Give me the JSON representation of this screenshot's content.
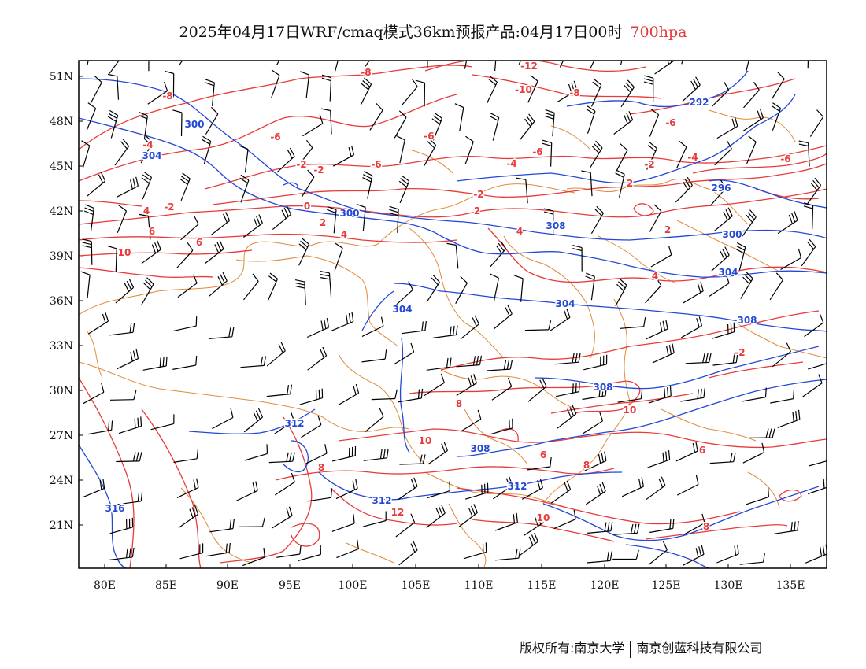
{
  "title": {
    "text": "2025年04月17日WRF/cmaq模式36km预报产品:04月17日00时",
    "level": "700hpa"
  },
  "axes": {
    "lat_labels": [
      "51N",
      "48N",
      "45N",
      "42N",
      "39N",
      "36N",
      "33N",
      "30N",
      "27N",
      "24N",
      "21N"
    ],
    "lon_labels": [
      "80E",
      "85E",
      "90E",
      "95E",
      "100E",
      "105E",
      "110E",
      "115E",
      "120E",
      "125E",
      "130E",
      "135E"
    ]
  },
  "colors": {
    "temperature": "#e83a3a",
    "height": "#2347d6",
    "border": "#e08a3a",
    "wind": "#000000"
  },
  "temperature_labels": [
    "-12",
    "-10",
    "-8",
    "-8",
    "-8",
    "-6",
    "-6",
    "-6",
    "-6",
    "-6",
    "-6",
    "-4",
    "-4",
    "-4",
    "-2",
    "-2",
    "-2",
    "-2",
    "-2",
    "0",
    "2",
    "2",
    "2",
    "4",
    "4",
    "4",
    "4",
    "2",
    "-2",
    "6",
    "6",
    "6",
    "6",
    "8",
    "8",
    "8",
    "8",
    "10",
    "10",
    "10",
    "10",
    "12"
  ],
  "height_labels": [
    "292",
    "296",
    "300",
    "300",
    "300",
    "304",
    "304",
    "304",
    "304",
    "308",
    "308",
    "308",
    "308",
    "312",
    "312",
    "312",
    "316"
  ],
  "credit": {
    "left": "版权所有:南京大学",
    "right": "南京创蓝科技有限公司"
  }
}
